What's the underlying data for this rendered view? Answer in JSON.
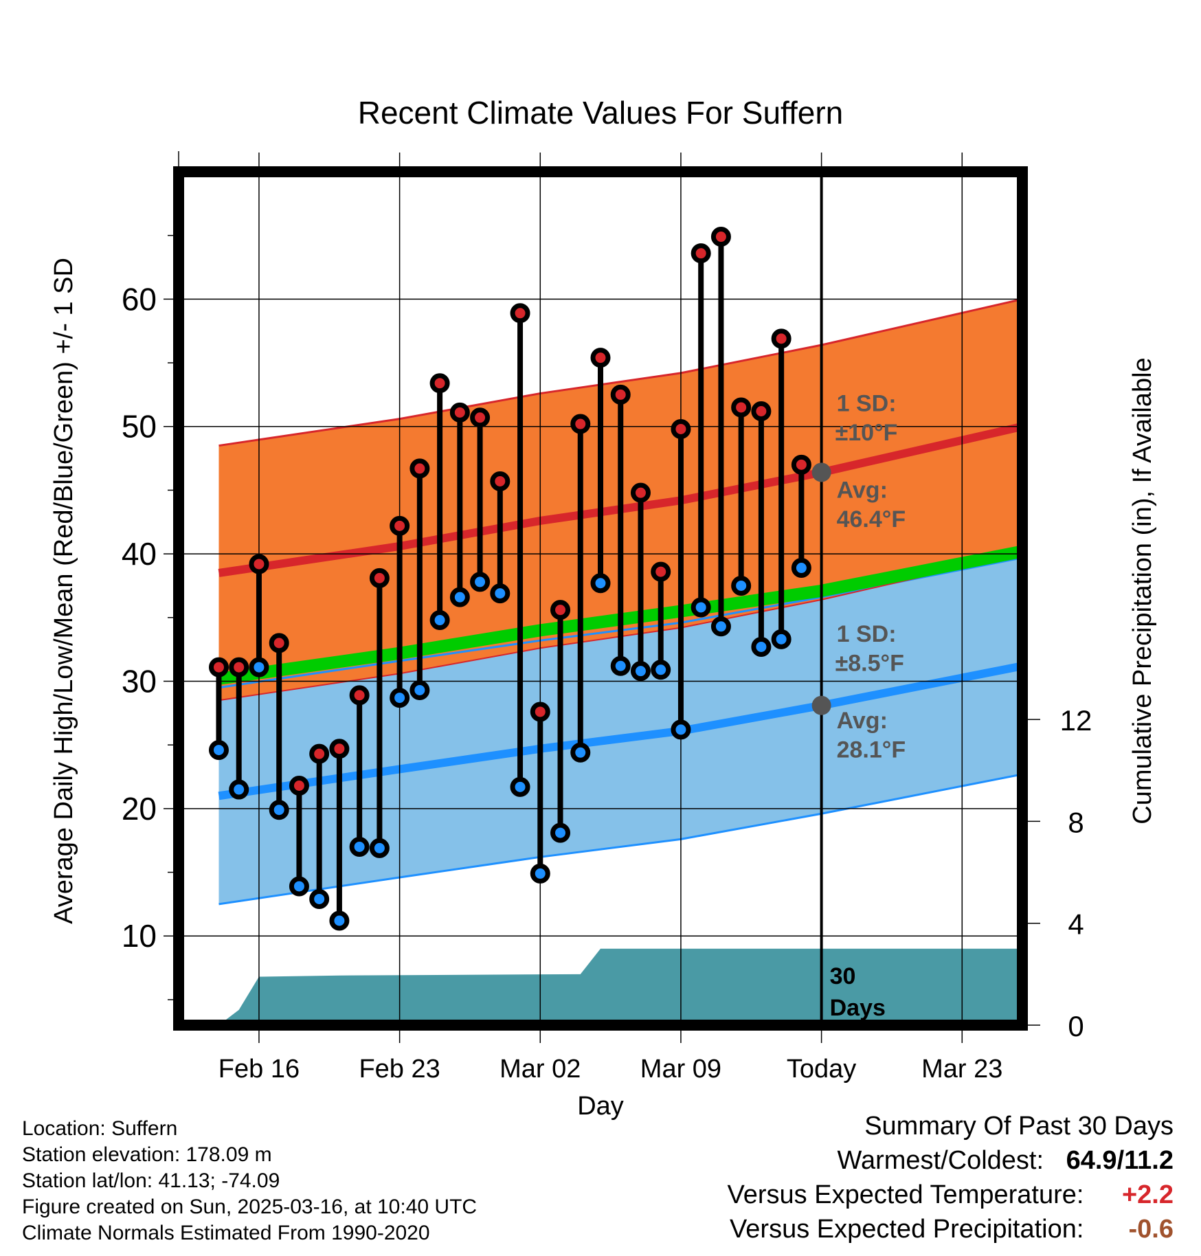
{
  "chart_data": {
    "type": "line",
    "title": "Recent Climate Values For Suffern",
    "xlabel": "Day",
    "ylabel": "Average Daily High/Low/Mean (Red/Blue/Green) +/- 1 SD",
    "y2label": "Cumulative Precipitation (in), If Available",
    "ylim": [
      3,
      70
    ],
    "y2lim": [
      0,
      33.5
    ],
    "x_range": [
      "2025-02-12",
      "2025-03-26"
    ],
    "x_ticks": [
      {
        "date": "2025-02-16",
        "label": "Feb 16"
      },
      {
        "date": "2025-02-23",
        "label": "Feb 23"
      },
      {
        "date": "2025-03-02",
        "label": "Mar 02"
      },
      {
        "date": "2025-03-09",
        "label": "Mar 09"
      },
      {
        "date": "2025-03-16",
        "label": "Today"
      },
      {
        "date": "2025-03-23",
        "label": "Mar 23"
      }
    ],
    "y_ticks": [
      10,
      20,
      30,
      40,
      50,
      60
    ],
    "y2_ticks": [
      0,
      4,
      8,
      12
    ],
    "grid": true,
    "today": "2025-03-16",
    "daily": {
      "dates": [
        "2025-02-14",
        "2025-02-15",
        "2025-02-16",
        "2025-02-17",
        "2025-02-18",
        "2025-02-19",
        "2025-02-20",
        "2025-02-21",
        "2025-02-22",
        "2025-02-23",
        "2025-02-24",
        "2025-02-25",
        "2025-02-26",
        "2025-02-27",
        "2025-02-28",
        "2025-03-01",
        "2025-03-02",
        "2025-03-03",
        "2025-03-04",
        "2025-03-05",
        "2025-03-06",
        "2025-03-07",
        "2025-03-08",
        "2025-03-09",
        "2025-03-10",
        "2025-03-11",
        "2025-03-12",
        "2025-03-13",
        "2025-03-14",
        "2025-03-15"
      ],
      "high": [
        31.1,
        31.1,
        39.2,
        33.0,
        21.8,
        24.3,
        24.7,
        28.9,
        38.1,
        42.2,
        46.7,
        53.4,
        51.1,
        50.7,
        45.7,
        58.9,
        27.6,
        35.6,
        50.2,
        55.4,
        52.5,
        44.8,
        38.6,
        49.8,
        63.6,
        64.9,
        51.5,
        51.2,
        56.9,
        47.0
      ],
      "low": [
        24.6,
        21.5,
        31.1,
        19.9,
        13.9,
        12.9,
        11.2,
        17.0,
        16.9,
        28.7,
        29.3,
        34.8,
        36.6,
        37.8,
        36.9,
        21.7,
        14.9,
        18.1,
        24.4,
        37.7,
        31.2,
        30.8,
        30.9,
        26.2,
        35.8,
        34.3,
        37.5,
        32.7,
        33.3,
        38.9
      ]
    },
    "normals": {
      "dates": [
        "2025-02-14",
        "2025-02-23",
        "2025-03-02",
        "2025-03-09",
        "2025-03-16",
        "2025-03-26"
      ],
      "high_avg": [
        38.5,
        40.6,
        42.6,
        44.2,
        46.4,
        50.0
      ],
      "high_sd": 10,
      "low_avg": [
        21.0,
        23.1,
        24.7,
        26.1,
        28.1,
        31.2
      ],
      "low_sd": 8.5,
      "mean_avg": [
        30.2,
        32.2,
        34.0,
        35.5,
        37.1,
        40.2
      ]
    },
    "precip_cumulative": {
      "dates": [
        "2025-02-13",
        "2025-02-14",
        "2025-02-15",
        "2025-02-16",
        "2025-02-20",
        "2025-03-04",
        "2025-03-05",
        "2025-03-26"
      ],
      "values": [
        0,
        0,
        0.6,
        1.9,
        1.95,
        2.0,
        3.0,
        3.0
      ]
    },
    "annotations": {
      "high_sd": "1 SD:",
      "high_sd_value": "±10°F",
      "high_avg_label": "Avg:",
      "high_avg_value": "46.4°F",
      "low_sd": "1 SD:",
      "low_sd_value": "±8.5°F",
      "low_avg_label": "Avg:",
      "low_avg_value": "28.1°F",
      "days_num": "30",
      "days_word": "Days"
    },
    "colors": {
      "high_band": "#f47a30",
      "high_line": "#d7262b",
      "low_band": "#85c1e9",
      "low_line": "#1e90ff",
      "mean_band": "#00cc00",
      "precip": "#4a9aa5",
      "high_dot": "#d7262b",
      "low_dot": "#1e90ff",
      "annotation": "#555555"
    }
  },
  "info": {
    "location": "Location: Suffern",
    "elevation": "Station elevation: 178.09 m",
    "latlon": "Station lat/lon: 41.13; -74.09",
    "created": "Figure created on Sun, 2025-03-16, at 10:40 UTC",
    "normals": "Climate Normals Estimated From 1990-2020"
  },
  "summary": {
    "title": "Summary Of Past 30 Days",
    "warm_label": "Warmest/Coldest:",
    "warm_value": "64.9/11.2",
    "temp_label": "Versus Expected Temperature:",
    "temp_value": "+2.2",
    "temp_color": "#d7262b",
    "precip_label": "Versus Expected Precipitation:",
    "precip_value": "-0.6",
    "precip_color": "#a0522d"
  }
}
